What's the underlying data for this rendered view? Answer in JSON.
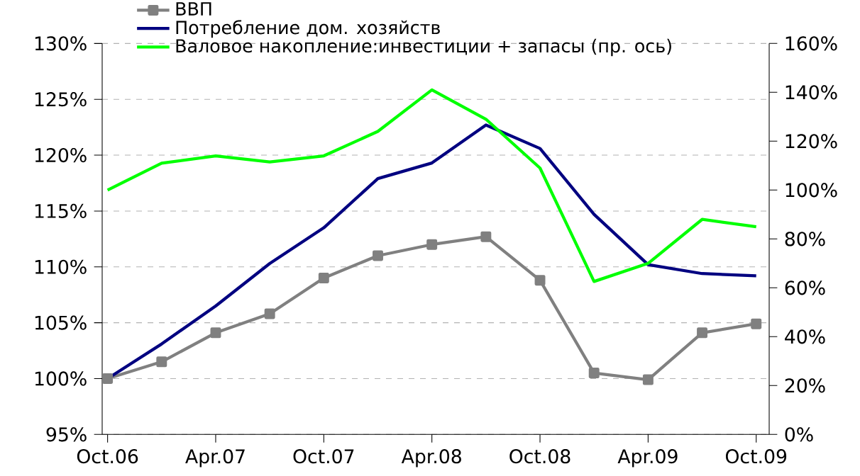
{
  "chart_data": {
    "type": "line",
    "categories": [
      "Oct.06",
      null,
      "Apr.07",
      null,
      "Oct.07",
      null,
      "Apr.08",
      null,
      "Oct.08",
      null,
      "Apr.09",
      null,
      "Oct.09"
    ],
    "series": [
      {
        "name": "ВВП",
        "color": "#808080",
        "marker": "square",
        "values": [
          100,
          101.5,
          104.1,
          105.8,
          109.0,
          111.0,
          112.0,
          112.7,
          108.8,
          100.5,
          99.9,
          104.1,
          104.9
        ]
      },
      {
        "name": "Потребление дом. хозяйств",
        "color": "#000080",
        "marker": "none",
        "values": [
          100,
          103.1,
          106.5,
          110.3,
          113.5,
          117.9,
          119.3,
          122.7,
          120.6,
          114.7,
          110.2,
          109.4,
          109.2
        ]
      },
      {
        "name": "Валовое накопление:инвестиции + запасы (пр. ось)",
        "color": "#00ff00",
        "marker": "none",
        "axis": "y2",
        "values": [
          100,
          111,
          114,
          111.5,
          114,
          124,
          141,
          129,
          109,
          62.6,
          70,
          88,
          85
        ]
      }
    ],
    "ylim": [
      95,
      130
    ],
    "yticks": [
      {
        "value": 95,
        "label": "95%"
      },
      {
        "value": 100,
        "label": "100%"
      },
      {
        "value": 105,
        "label": "105%"
      },
      {
        "value": 110,
        "label": "110%"
      },
      {
        "value": 115,
        "label": "115%"
      },
      {
        "value": 120,
        "label": "120%"
      },
      {
        "value": 125,
        "label": "125%"
      },
      {
        "value": 130,
        "label": "130%"
      }
    ],
    "y2lim": [
      0,
      160
    ],
    "y2ticks": [
      {
        "value": 0,
        "label": "0%"
      },
      {
        "value": 20,
        "label": "20%"
      },
      {
        "value": 40,
        "label": "40%"
      },
      {
        "value": 60,
        "label": "60%"
      },
      {
        "value": 80,
        "label": "80%"
      },
      {
        "value": 100,
        "label": "100%"
      },
      {
        "value": 120,
        "label": "120%"
      },
      {
        "value": 140,
        "label": "140%"
      },
      {
        "value": 160,
        "label": "160%"
      }
    ],
    "grid": "y",
    "legend": "top left",
    "line_style": "solid"
  }
}
